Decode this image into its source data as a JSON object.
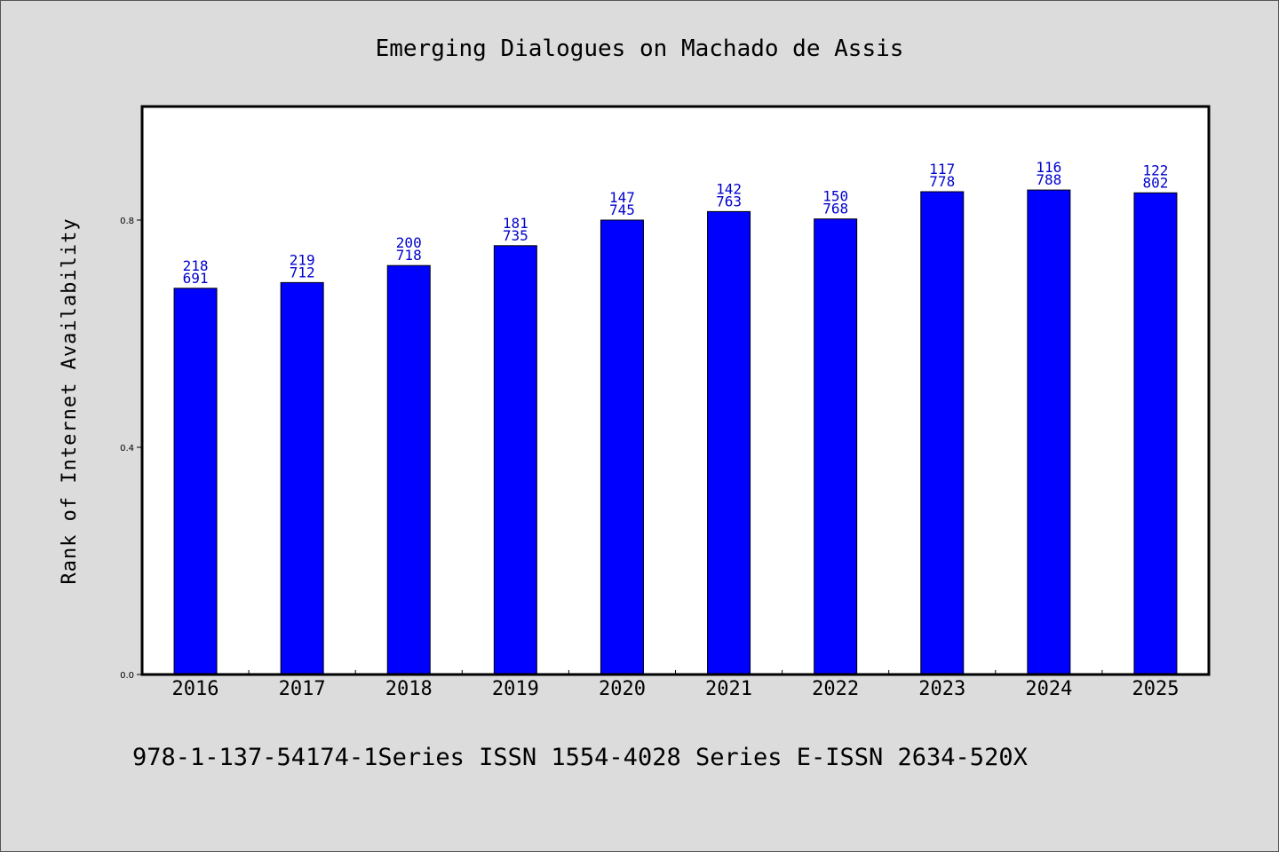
{
  "page": {
    "background": "#dcdcdc",
    "footer": "978-1-137-54174-1Series ISSN 1554-4028 Series E-ISSN 2634-520X"
  },
  "chart_data": {
    "type": "bar",
    "title": "Emerging Dialogues on Machado de Assis",
    "xlabel": "",
    "ylabel": "Rank of Internet Availability",
    "categories": [
      "2016",
      "2017",
      "2018",
      "2019",
      "2020",
      "2021",
      "2022",
      "2023",
      "2024",
      "2025"
    ],
    "values": [
      0.68,
      0.69,
      0.72,
      0.755,
      0.8,
      0.815,
      0.802,
      0.85,
      0.853,
      0.848
    ],
    "data_labels": [
      [
        "218",
        "691"
      ],
      [
        "219",
        "712"
      ],
      [
        "200",
        "718"
      ],
      [
        "181",
        "735"
      ],
      [
        "147",
        "745"
      ],
      [
        "142",
        "763"
      ],
      [
        "150",
        "768"
      ],
      [
        "117",
        "778"
      ],
      [
        "116",
        "788"
      ],
      [
        "122",
        "802"
      ]
    ],
    "ylim": [
      0.0,
      1.0
    ],
    "yticks": [
      0.0,
      0.4,
      0.8
    ],
    "ytick_labels": [
      "0.0",
      "0.4",
      "0.8"
    ],
    "grid": false,
    "bar_color": "#0000ff",
    "label_color": "#0000cc",
    "plot_background": "#ffffff"
  }
}
